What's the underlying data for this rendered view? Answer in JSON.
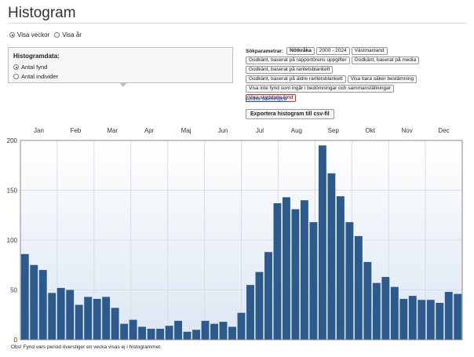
{
  "page": {
    "title": "Histogram",
    "footnote": "Obs! Fynd vars period överstiger en vecka visas ej i histogrammet."
  },
  "view_options": {
    "weeks_label": "Visa veckor",
    "year_label": "Visa år",
    "selected": "weeks"
  },
  "histogram_data_box": {
    "title": "Histogramdata:",
    "option_finds": "Antal fynd",
    "option_individuals": "Antal individer",
    "selected": "finds"
  },
  "search_params": {
    "label": "Sökparametrar:",
    "tags": [
      [
        "Nötkråka",
        "2000 - 2024",
        "Västmanland"
      ],
      [
        "Godkänt, baserat på rapportörens uppgifter",
        "Godkänt, baserat på media"
      ],
      [
        "Godkänt, baserat på raritetsblankett"
      ],
      [
        "Godkänt, baserat på äldre raritetsblankett",
        "Visa bara säker bestämning"
      ],
      [
        "Visa inte fynd som ingår i bedömningar och sammanställningar"
      ],
      [
        "Visa skyddade fynd"
      ]
    ],
    "change_link": "Ändra sökningen",
    "export_button": "Exportera histogram till csv-fil"
  },
  "chart_data": {
    "type": "bar",
    "months": [
      "Jan",
      "Feb",
      "Mar",
      "Apr",
      "Maj",
      "Jun",
      "Jul",
      "Aug",
      "Sep",
      "Okt",
      "Nov",
      "Dec"
    ],
    "ylim": [
      0,
      200
    ],
    "yticks": [
      0,
      50,
      100,
      150,
      200
    ],
    "grid": true,
    "bar_color": "#2d5a8c",
    "values": [
      86,
      75,
      70,
      47,
      52,
      50,
      35,
      43,
      41,
      43,
      32,
      16,
      20,
      13,
      11,
      11,
      14,
      19,
      8,
      10,
      19,
      16,
      18,
      13,
      27,
      55,
      68,
      88,
      137,
      143,
      131,
      140,
      118,
      195,
      167,
      144,
      118,
      104,
      78,
      57,
      63,
      53,
      41,
      44,
      40,
      40,
      37,
      48,
      46
    ]
  }
}
